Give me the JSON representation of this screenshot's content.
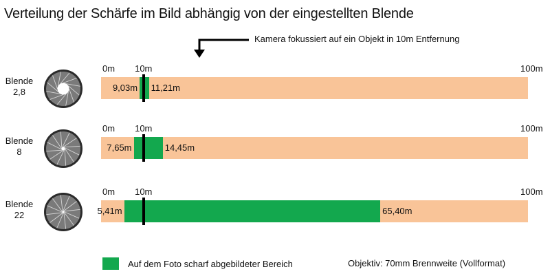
{
  "title": "Verteilung der Schärfe im Bild abhängig von der eingestellten Blende",
  "annotation": "Kamera fokussiert auf ein Objekt in 10m Entfernung",
  "axis": {
    "start_label": "0m",
    "focus_label": "10m",
    "end_label": "100m",
    "min": 0,
    "max": 100,
    "focus": 10
  },
  "rows": [
    {
      "blende_word": "Blende",
      "f_number": "2,8",
      "near": 9.03,
      "far": 11.21,
      "near_label": "9,03m",
      "far_label": "11,21m",
      "opening": 0.34
    },
    {
      "blende_word": "Blende",
      "f_number": "8",
      "near": 7.65,
      "far": 14.45,
      "near_label": "7,65m",
      "far_label": "14,45m",
      "opening": 0.1
    },
    {
      "blende_word": "Blende",
      "f_number": "22",
      "near": 5.41,
      "far": 65.4,
      "near_label": "5,41m",
      "far_label": "65,40m",
      "opening": 0.04
    }
  ],
  "legend": {
    "label": "Auf dem  Foto  scharf abgebildeter Bereich"
  },
  "lens_note": "Objektiv: 70mm  Brennweite (Vollformat)",
  "colors": {
    "sharp": "#13a84e",
    "track": "#f9c498",
    "focus_line": "#000000",
    "aperture_blades": "#7a7a7a"
  }
}
